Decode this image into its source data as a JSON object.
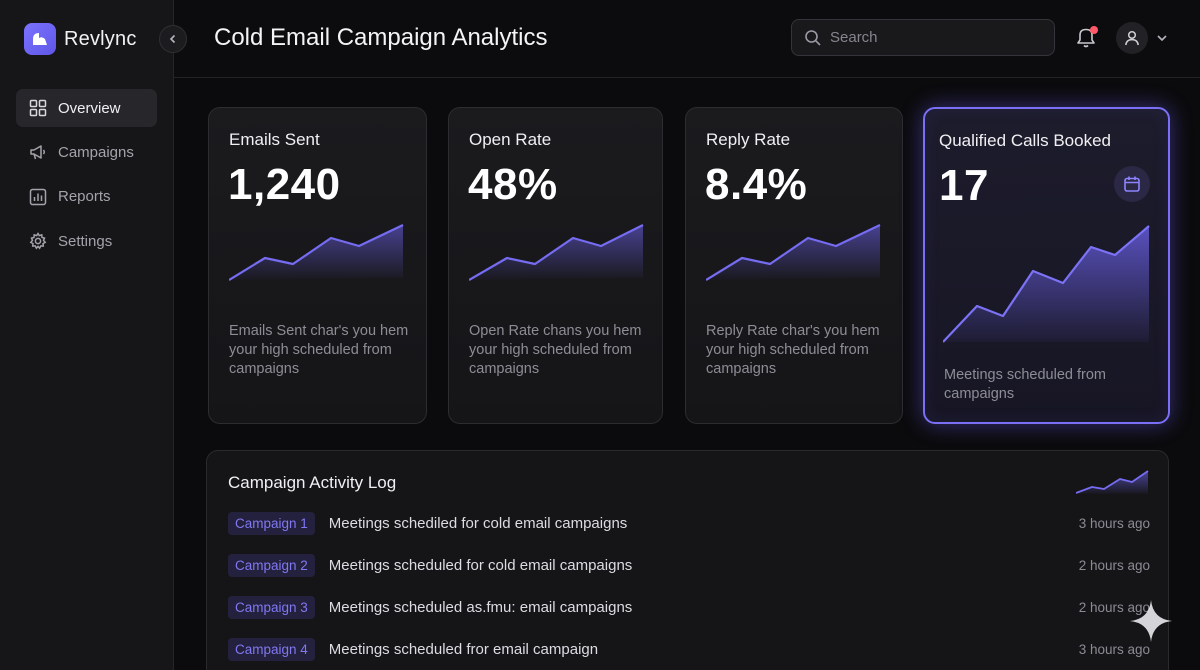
{
  "brand": {
    "name": "Revlync"
  },
  "sidebar": {
    "items": [
      {
        "label": "Overview",
        "icon": "grid-icon",
        "active": true
      },
      {
        "label": "Campaigns",
        "icon": "megaphone-icon"
      },
      {
        "label": "Reports",
        "icon": "bar-chart-icon"
      },
      {
        "label": "Settings",
        "icon": "gear-icon"
      }
    ]
  },
  "header": {
    "title": "Cold Email Campaign Analytics",
    "search_placeholder": "Search"
  },
  "cards": [
    {
      "title": "Emails Sent",
      "value": "1,240",
      "description": "Emails Sent char's you hem your high scheduled from campaigns"
    },
    {
      "title": "Open Rate",
      "value": "48%",
      "description": "Open Rate chans you hem your high scheduled from campaigns"
    },
    {
      "title": "Reply Rate",
      "value": "8.4%",
      "description": "Reply Rate char's you hem your high scheduled from campaigns"
    },
    {
      "title": "Qualified Calls Booked",
      "value": "17",
      "description": "Meetings scheduled from campaigns",
      "icon": "calendar-icon"
    }
  ],
  "activity_log": {
    "title": "Campaign Activity Log",
    "rows": [
      {
        "tag": "Campaign 1",
        "text": "Meetings schediled for cold email campaigns",
        "time": "3 hours ago"
      },
      {
        "tag": "Campaign 2",
        "text": "Meetings scheduled for cold email campaigns",
        "time": "2 hours ago"
      },
      {
        "tag": "Campaign 3",
        "text": "Meetings scheduled as.fmu: email campaigns",
        "time": "2 hours ago"
      },
      {
        "tag": "Campaign 4",
        "text": "Meetings scheduled fror email campaign",
        "time": "3 hours ago"
      }
    ]
  },
  "colors": {
    "accent": "#7a6ff5",
    "background": "#0b0b0d",
    "notification": "#ff5a6a"
  }
}
